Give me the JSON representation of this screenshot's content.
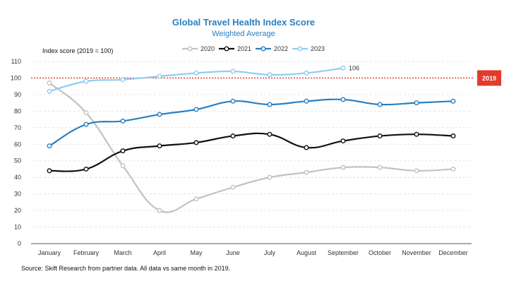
{
  "chart_data": {
    "type": "line",
    "title": "Global Travel Health Index Score",
    "subtitle": "Weighted Average",
    "ylabel": "Index score (2019 = 100)",
    "source": "Source: Skift Research from partner data. All data vs same month in 2019.",
    "categories": [
      "January",
      "February",
      "March",
      "April",
      "May",
      "June",
      "July",
      "August",
      "September",
      "October",
      "November",
      "December"
    ],
    "ylim": [
      0,
      110
    ],
    "yticks": [
      0,
      10,
      20,
      30,
      40,
      50,
      60,
      70,
      80,
      90,
      100,
      110
    ],
    "grid": true,
    "legend_position": "top-center",
    "series": [
      {
        "name": "2020",
        "color": "#c2c2c2",
        "values": [
          97,
          79,
          47,
          20,
          27,
          34,
          40,
          43,
          46,
          46,
          44,
          45
        ]
      },
      {
        "name": "2021",
        "color": "#111111",
        "values": [
          44,
          45,
          56,
          59,
          61,
          65,
          66,
          58,
          62,
          65,
          66,
          65
        ]
      },
      {
        "name": "2022",
        "color": "#2a7fc1",
        "values": [
          59,
          72,
          74,
          78,
          81,
          86,
          84,
          86,
          87,
          84,
          85,
          86
        ]
      },
      {
        "name": "2023",
        "color": "#8ecdf3",
        "values": [
          92,
          98,
          99,
          101,
          103,
          104,
          102,
          103,
          106,
          null,
          null,
          null
        ]
      }
    ],
    "reference_line": {
      "value": 100,
      "label": "2019",
      "color": "#e23b2a"
    },
    "annotations": [
      {
        "series": "2023",
        "category": "September",
        "text": "106"
      }
    ]
  }
}
